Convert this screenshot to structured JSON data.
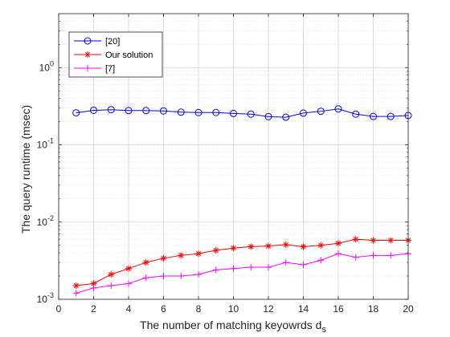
{
  "chart_data": {
    "type": "line",
    "xlabel": "The number of matching keyowrds d",
    "xlabel_subscript": "s",
    "ylabel": "The query runtime (msec)",
    "xlim": [
      0,
      20
    ],
    "ylim": [
      0.001,
      5
    ],
    "yscale": "log",
    "grid": true,
    "legend_position": "top-left",
    "x_ticks": [
      "0",
      "2",
      "4",
      "6",
      "8",
      "10",
      "12",
      "14",
      "16",
      "18",
      "20"
    ],
    "y_ticks": [
      {
        "base": "10",
        "exp": "-3",
        "value": 0.001
      },
      {
        "base": "10",
        "exp": "-2",
        "value": 0.01
      },
      {
        "base": "10",
        "exp": "-1",
        "value": 0.1
      },
      {
        "base": "10",
        "exp": "0",
        "value": 1
      }
    ],
    "x": [
      1,
      2,
      3,
      4,
      5,
      6,
      7,
      8,
      9,
      10,
      11,
      12,
      13,
      14,
      15,
      16,
      17,
      18,
      19,
      20
    ],
    "series": [
      {
        "name": "[20]",
        "color": "#0000ff",
        "marker": "circle",
        "values": [
          0.26,
          0.28,
          0.285,
          0.278,
          0.278,
          0.275,
          0.265,
          0.262,
          0.262,
          0.255,
          0.25,
          0.232,
          0.228,
          0.258,
          0.272,
          0.292,
          0.25,
          0.233,
          0.233,
          0.24
        ]
      },
      {
        "name": "Our solution",
        "color": "#ff0000",
        "marker": "asterisk",
        "values": [
          0.0015,
          0.0016,
          0.0021,
          0.0025,
          0.003,
          0.0034,
          0.0037,
          0.0039,
          0.0043,
          0.0046,
          0.0048,
          0.0049,
          0.0051,
          0.0048,
          0.005,
          0.0053,
          0.006,
          0.0058,
          0.0058,
          0.0058
        ]
      },
      {
        "name": "[7]",
        "color": "#ff00ff",
        "marker": "plus",
        "values": [
          0.0012,
          0.0014,
          0.0015,
          0.0016,
          0.0019,
          0.002,
          0.002,
          0.0021,
          0.0024,
          0.0025,
          0.0026,
          0.0026,
          0.003,
          0.0028,
          0.0032,
          0.0039,
          0.0035,
          0.0037,
          0.0037,
          0.0039
        ]
      }
    ]
  }
}
